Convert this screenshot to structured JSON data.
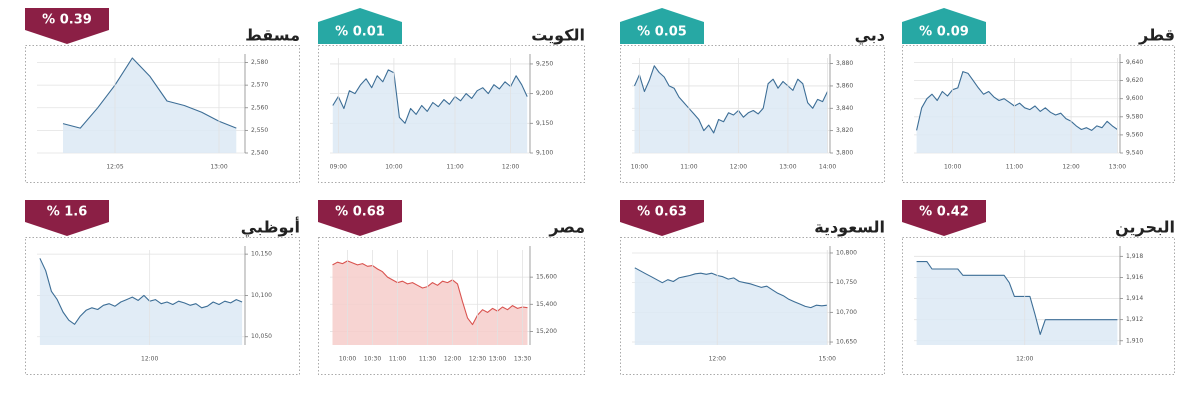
{
  "chart_data": [
    {
      "type": "line",
      "title": "مسقط",
      "badge": "% 0.39",
      "badge_direction": "down",
      "badge_color": "#8b1f45",
      "color": "#3d6e96",
      "fill": "#dce9f4",
      "grid": true,
      "categories": [
        null,
        null,
        null,
        null,
        "12:05",
        null,
        null,
        null,
        null,
        null,
        "13:00",
        null
      ],
      "values": [
        null,
        2553,
        2551,
        2560,
        2570,
        2582,
        2574,
        2563,
        2561,
        2558,
        2554,
        2551
      ],
      "ylim": [
        2540,
        2582
      ],
      "yticks": [
        {
          "value": 2540,
          "label": "2,540"
        },
        {
          "value": 2550,
          "label": "2,550"
        },
        {
          "value": 2560,
          "label": "2,560"
        },
        {
          "value": 2570,
          "label": "2,570"
        },
        {
          "value": 2580,
          "label": "2,580"
        }
      ]
    },
    {
      "type": "line",
      "title": "الكويت",
      "badge": "% 0.01",
      "badge_direction": "up",
      "badge_color": "#27a8a4",
      "color": "#3d6e96",
      "fill": "#dce9f4",
      "grid": true,
      "categories": [
        null,
        "09:00",
        null,
        null,
        null,
        null,
        null,
        null,
        null,
        null,
        null,
        "10:00",
        null,
        null,
        null,
        null,
        null,
        null,
        null,
        null,
        null,
        null,
        "11:00",
        null,
        null,
        null,
        null,
        null,
        null,
        null,
        null,
        null,
        "12:00",
        null,
        null,
        null
      ],
      "values": [
        9180,
        9195,
        9175,
        9205,
        9200,
        9215,
        9225,
        9210,
        9230,
        9220,
        9240,
        9235,
        9160,
        9150,
        9175,
        9165,
        9180,
        9170,
        9185,
        9178,
        9190,
        9182,
        9195,
        9188,
        9200,
        9192,
        9205,
        9210,
        9200,
        9215,
        9208,
        9220,
        9212,
        9230,
        9215,
        9195
      ],
      "ylim": [
        9100,
        9260
      ],
      "yticks": [
        {
          "value": 9100,
          "label": "9,100"
        },
        {
          "value": 9150,
          "label": "9,150"
        },
        {
          "value": 9200,
          "label": "9,200"
        },
        {
          "value": 9250,
          "label": "9,250"
        }
      ]
    },
    {
      "type": "line",
      "title": "دبي",
      "badge": "% 0.05",
      "badge_direction": "up",
      "badge_color": "#27a8a4",
      "color": "#3d6e96",
      "fill": "#dce9f4",
      "grid": true,
      "categories": [
        null,
        "10:00",
        null,
        null,
        null,
        null,
        null,
        null,
        null,
        null,
        null,
        "11:00",
        null,
        null,
        null,
        null,
        null,
        null,
        null,
        null,
        null,
        "12:00",
        null,
        null,
        null,
        null,
        null,
        null,
        null,
        null,
        null,
        "13:00",
        null,
        null,
        null,
        null,
        null,
        null,
        null,
        "14:00"
      ],
      "values": [
        3860,
        3870,
        3855,
        3865,
        3878,
        3872,
        3868,
        3860,
        3858,
        3850,
        3845,
        3840,
        3835,
        3830,
        3820,
        3825,
        3818,
        3830,
        3828,
        3836,
        3834,
        3838,
        3832,
        3836,
        3838,
        3835,
        3840,
        3862,
        3866,
        3858,
        3864,
        3860,
        3856,
        3866,
        3862,
        3845,
        3840,
        3848,
        3846,
        3855
      ],
      "ylim": [
        3800,
        3885
      ],
      "yticks": [
        {
          "value": 3800,
          "label": "3,800"
        },
        {
          "value": 3820,
          "label": "3,820"
        },
        {
          "value": 3840,
          "label": "3,840"
        },
        {
          "value": 3860,
          "label": "3,860"
        },
        {
          "value": 3880,
          "label": "3,880"
        }
      ]
    },
    {
      "type": "line",
      "title": "قطر",
      "badge": "% 0.09",
      "badge_direction": "up",
      "badge_color": "#27a8a4",
      "color": "#3d6e96",
      "fill": "#dce9f4",
      "grid": true,
      "categories": [
        null,
        null,
        null,
        null,
        null,
        null,
        null,
        "10:00",
        null,
        null,
        null,
        null,
        null,
        null,
        null,
        null,
        null,
        null,
        null,
        "11:00",
        null,
        null,
        null,
        null,
        null,
        null,
        null,
        null,
        null,
        null,
        "12:00",
        null,
        null,
        null,
        null,
        null,
        null,
        null,
        null,
        "13:00"
      ],
      "values": [
        9565,
        9590,
        9600,
        9605,
        9598,
        9608,
        9603,
        9610,
        9612,
        9630,
        9628,
        9620,
        9612,
        9605,
        9608,
        9602,
        9598,
        9600,
        9596,
        9592,
        9595,
        9590,
        9588,
        9592,
        9586,
        9590,
        9585,
        9582,
        9584,
        9578,
        9575,
        9570,
        9566,
        9568,
        9565,
        9570,
        9568,
        9575,
        9570,
        9566
      ],
      "ylim": [
        9540,
        9645
      ],
      "yticks": [
        {
          "value": 9540,
          "label": "9,540"
        },
        {
          "value": 9560,
          "label": "9,560"
        },
        {
          "value": 9580,
          "label": "9,580"
        },
        {
          "value": 9600,
          "label": "9,600"
        },
        {
          "value": 9620,
          "label": "9,620"
        },
        {
          "value": 9640,
          "label": "9,640"
        }
      ]
    },
    {
      "type": "line",
      "title": "أبوظبي",
      "badge": "% 1.6",
      "badge_direction": "down",
      "badge_color": "#8b1f45",
      "color": "#3d6e96",
      "fill": "#dce9f4",
      "grid": true,
      "categories": [
        null,
        null,
        null,
        null,
        null,
        null,
        null,
        null,
        null,
        null,
        null,
        null,
        null,
        null,
        null,
        null,
        null,
        null,
        null,
        "12:00",
        null,
        null,
        null,
        null,
        null,
        null,
        null,
        null,
        null,
        null,
        null,
        null,
        null,
        null,
        null,
        null
      ],
      "values": [
        10145,
        10130,
        10105,
        10095,
        10080,
        10070,
        10065,
        10075,
        10082,
        10085,
        10083,
        10088,
        10090,
        10087,
        10092,
        10095,
        10098,
        10094,
        10100,
        10093,
        10095,
        10090,
        10092,
        10089,
        10093,
        10091,
        10088,
        10090,
        10085,
        10087,
        10092,
        10089,
        10093,
        10091,
        10095,
        10092
      ],
      "ylim": [
        10040,
        10155
      ],
      "yticks": [
        {
          "value": 10050,
          "label": "10,050"
        },
        {
          "value": 10100,
          "label": "10,100"
        },
        {
          "value": 10150,
          "label": "10,150"
        }
      ]
    },
    {
      "type": "line",
      "title": "مصر",
      "badge": "% 0.68",
      "badge_direction": "down",
      "badge_color": "#8b1f45",
      "color": "#d9534f",
      "fill": "#f6cdca",
      "grid": true,
      "categories": [
        null,
        null,
        null,
        "10:00",
        null,
        null,
        null,
        null,
        "10:30",
        null,
        null,
        null,
        null,
        "11:00",
        null,
        null,
        null,
        null,
        null,
        "11:30",
        null,
        null,
        null,
        null,
        "12:00",
        null,
        null,
        null,
        null,
        "12:30",
        null,
        null,
        null,
        "13:00",
        null,
        null,
        null,
        null,
        "13:30",
        null
      ],
      "values": [
        15690,
        15710,
        15700,
        15720,
        15705,
        15690,
        15700,
        15680,
        15685,
        15660,
        15640,
        15600,
        15580,
        15560,
        15570,
        15550,
        15560,
        15540,
        15520,
        15530,
        15560,
        15540,
        15570,
        15560,
        15580,
        15550,
        15420,
        15300,
        15250,
        15320,
        15360,
        15340,
        15370,
        15350,
        15380,
        15360,
        15390,
        15370,
        15380,
        15375
      ],
      "ylim": [
        15100,
        15800
      ],
      "yticks": [
        {
          "value": 15200,
          "label": "15,200"
        },
        {
          "value": 15400,
          "label": "15,400"
        },
        {
          "value": 15600,
          "label": "15,600"
        }
      ]
    },
    {
      "type": "line",
      "title": "السعودية",
      "badge": "% 0.63",
      "badge_direction": "down",
      "badge_color": "#8b1f45",
      "color": "#3d6e96",
      "fill": "#dce9f4",
      "grid": true,
      "categories": [
        null,
        null,
        null,
        null,
        null,
        null,
        null,
        null,
        null,
        null,
        null,
        null,
        null,
        null,
        null,
        "12:00",
        null,
        null,
        null,
        null,
        null,
        null,
        null,
        null,
        null,
        null,
        null,
        null,
        null,
        null,
        null,
        null,
        null,
        null,
        null,
        "15:00"
      ],
      "values": [
        10775,
        10770,
        10765,
        10760,
        10755,
        10750,
        10755,
        10752,
        10758,
        10760,
        10762,
        10765,
        10766,
        10764,
        10766,
        10762,
        10760,
        10756,
        10758,
        10752,
        10750,
        10748,
        10745,
        10742,
        10744,
        10738,
        10732,
        10728,
        10722,
        10718,
        10714,
        10710,
        10708,
        10712,
        10711,
        10712
      ],
      "ylim": [
        10645,
        10805
      ],
      "yticks": [
        {
          "value": 10650,
          "label": "10,650"
        },
        {
          "value": 10700,
          "label": "10,700"
        },
        {
          "value": 10750,
          "label": "10,750"
        },
        {
          "value": 10800,
          "label": "10,800"
        }
      ]
    },
    {
      "type": "line",
      "title": "البحرين",
      "badge": "% 0.42",
      "badge_direction": "down",
      "badge_color": "#8b1f45",
      "color": "#3d6e96",
      "fill": "#dce9f4",
      "grid": true,
      "categories": [
        null,
        null,
        null,
        null,
        null,
        null,
        null,
        null,
        null,
        null,
        null,
        null,
        null,
        null,
        null,
        null,
        null,
        null,
        null,
        null,
        null,
        "12:00",
        null,
        null,
        null,
        null,
        null,
        null,
        null,
        null,
        null,
        null,
        null,
        null,
        null,
        null,
        null,
        null,
        null,
        null
      ],
      "values": [
        1917.5,
        1917.5,
        1917.5,
        1916.8,
        1916.8,
        1916.8,
        1916.8,
        1916.8,
        1916.8,
        1916.2,
        1916.2,
        1916.2,
        1916.2,
        1916.2,
        1916.2,
        1916.2,
        1916.2,
        1916.2,
        1915.5,
        1914.2,
        1914.2,
        1914.2,
        1914.2,
        1912.5,
        1910.6,
        1912,
        1912,
        1912,
        1912,
        1912,
        1912,
        1912,
        1912,
        1912,
        1912,
        1912,
        1912,
        1912,
        1912,
        1912
      ],
      "ylim": [
        1909.6,
        1918.6
      ],
      "yticks": [
        {
          "value": 1910,
          "label": "1,910"
        },
        {
          "value": 1912,
          "label": "1,912"
        },
        {
          "value": 1914,
          "label": "1,914"
        },
        {
          "value": 1916,
          "label": "1,916"
        },
        {
          "value": 1918,
          "label": "1,918"
        }
      ]
    }
  ]
}
